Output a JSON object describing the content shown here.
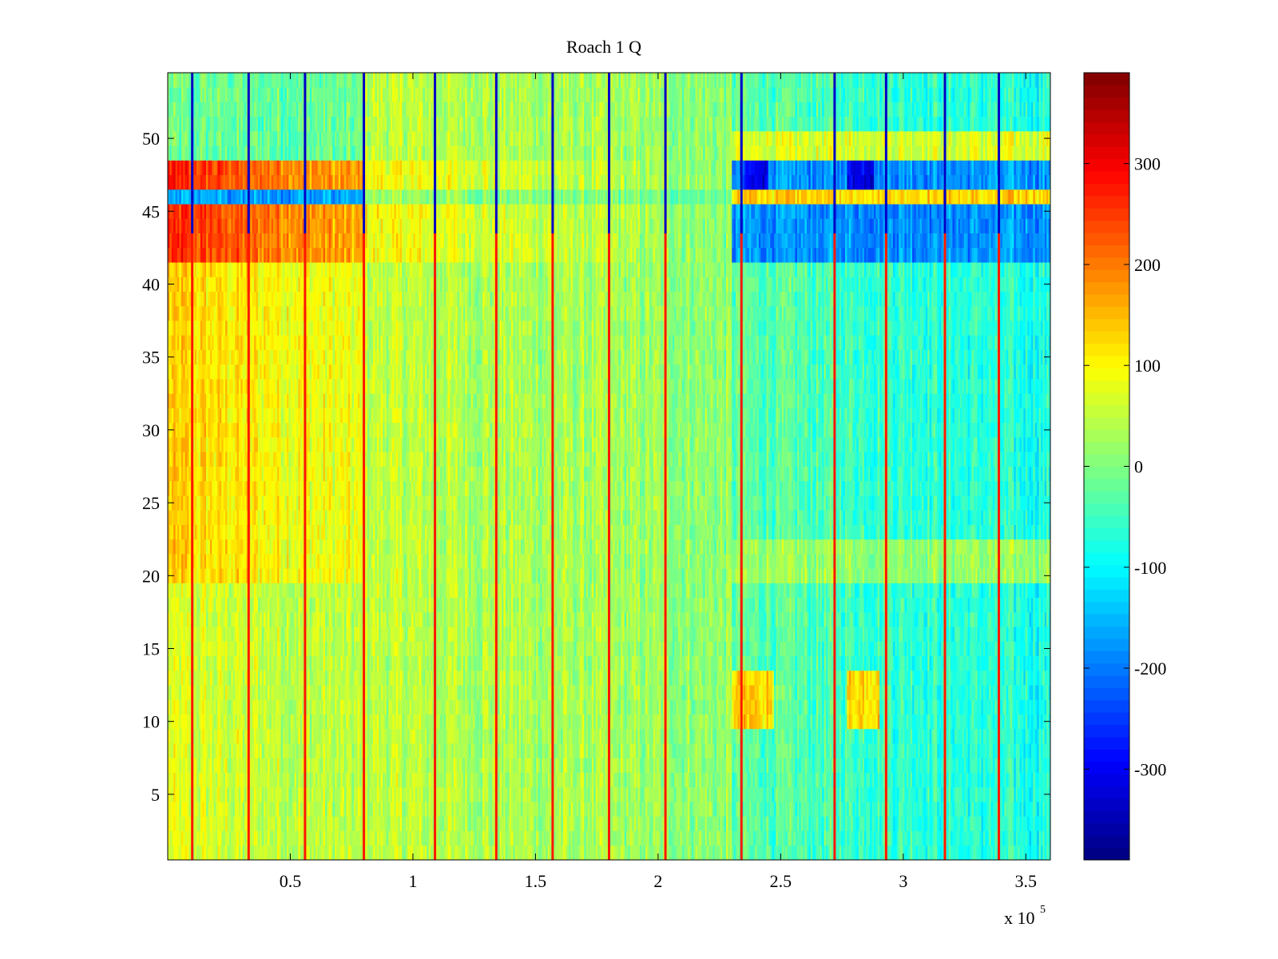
{
  "chart_data": {
    "type": "heatmap",
    "title": "Roach 1 Q",
    "xlabel": "",
    "ylabel": "",
    "x_multiplier_label": "x 10",
    "x_multiplier_exponent": "5",
    "xlim": [
      0,
      3.6
    ],
    "ylim": [
      0.5,
      54.5
    ],
    "x_ticks": [
      0.5,
      1,
      1.5,
      2,
      2.5,
      3,
      3.5
    ],
    "x_tick_labels": [
      "0.5",
      "1",
      "1.5",
      "2",
      "2.5",
      "3",
      "3.5"
    ],
    "y_ticks": [
      5,
      10,
      15,
      20,
      25,
      30,
      35,
      40,
      45,
      50
    ],
    "y_tick_labels": [
      "5",
      "10",
      "15",
      "20",
      "25",
      "30",
      "35",
      "40",
      "45",
      "50"
    ],
    "colormap": "jet",
    "clim": [
      -390,
      390
    ],
    "colorbar_ticks": [
      -300,
      -200,
      -100,
      0,
      100,
      200,
      300
    ],
    "colorbar_tick_labels": [
      "-300",
      "-200",
      "-100",
      "0",
      "100",
      "200",
      "300"
    ],
    "num_rows": 54,
    "segment_boundaries_x": [
      0.1,
      0.33,
      0.56,
      0.8,
      1.09,
      1.34,
      1.57,
      1.8,
      2.03,
      2.34,
      2.72,
      2.93,
      3.17,
      3.39
    ],
    "high_rows": [
      43,
      44,
      47,
      48
    ],
    "negative_rows": [
      46
    ],
    "positive_rows_right": [
      46
    ],
    "approx_values_by_region": [
      {
        "region": "x 0-0.8, rows 42-49",
        "value": 260
      },
      {
        "region": "x 0-0.8, rows 20-41",
        "value": 110
      },
      {
        "region": "x 0.8-2.3, all rows",
        "value": 30
      },
      {
        "region": "x 2.3-3.6, rows 42-49",
        "value": -180
      },
      {
        "region": "x 2.3-3.6, row 46",
        "value": 130
      },
      {
        "region": "x 2.35-2.45, rows 10-13",
        "value": 140
      },
      {
        "region": "x 2.77-2.88, rows 47-48",
        "value": -300
      }
    ]
  }
}
